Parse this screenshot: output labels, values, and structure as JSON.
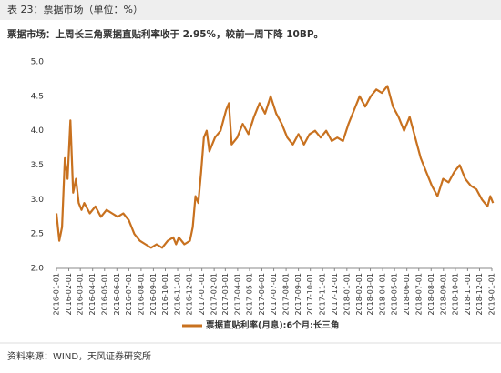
{
  "header": {
    "title": "表 23：票据市场（单位：%）"
  },
  "chart_data": {
    "type": "line",
    "subtitle": "票据市场：上周长三角票据直贴利率收于 2.95%，较前一周下降 10BP。",
    "x": [
      "2016-01-01",
      "2016-01-08",
      "2016-01-15",
      "2016-01-22",
      "2016-01-29",
      "2016-02-05",
      "2016-02-12",
      "2016-02-19",
      "2016-02-26",
      "2016-03-04",
      "2016-03-11",
      "2016-03-25",
      "2016-04-08",
      "2016-04-22",
      "2016-05-06",
      "2016-05-20",
      "2016-06-03",
      "2016-06-17",
      "2016-07-01",
      "2016-07-15",
      "2016-07-29",
      "2016-08-12",
      "2016-08-26",
      "2016-09-09",
      "2016-09-23",
      "2016-10-07",
      "2016-10-21",
      "2016-10-28",
      "2016-11-04",
      "2016-11-18",
      "2016-12-02",
      "2016-12-09",
      "2016-12-16",
      "2016-12-23",
      "2016-12-30",
      "2017-01-06",
      "2017-01-13",
      "2017-01-20",
      "2017-02-03",
      "2017-02-17",
      "2017-03-03",
      "2017-03-10",
      "2017-03-17",
      "2017-03-31",
      "2017-04-14",
      "2017-04-28",
      "2017-05-12",
      "2017-05-26",
      "2017-06-09",
      "2017-06-23",
      "2017-07-07",
      "2017-07-21",
      "2017-08-04",
      "2017-08-18",
      "2017-09-01",
      "2017-09-15",
      "2017-09-29",
      "2017-10-13",
      "2017-10-27",
      "2017-11-10",
      "2017-11-24",
      "2017-12-08",
      "2017-12-22",
      "2018-01-05",
      "2018-01-19",
      "2018-02-02",
      "2018-02-16",
      "2018-03-02",
      "2018-03-16",
      "2018-03-30",
      "2018-04-13",
      "2018-04-27",
      "2018-05-11",
      "2018-05-25",
      "2018-06-08",
      "2018-06-22",
      "2018-07-06",
      "2018-07-20",
      "2018-08-03",
      "2018-08-17",
      "2018-08-31",
      "2018-09-14",
      "2018-09-28",
      "2018-10-12",
      "2018-10-26",
      "2018-11-09",
      "2018-11-23",
      "2018-12-07",
      "2018-12-21",
      "2018-12-28",
      "2019-01-04"
    ],
    "series": [
      {
        "name": "票据直贴利率(月息):6个月:长三角",
        "color": "#c8711f",
        "values": [
          2.8,
          2.4,
          2.6,
          3.6,
          3.3,
          4.15,
          3.1,
          3.3,
          2.95,
          2.85,
          2.95,
          2.8,
          2.9,
          2.75,
          2.85,
          2.8,
          2.75,
          2.8,
          2.7,
          2.5,
          2.4,
          2.35,
          2.3,
          2.35,
          2.3,
          2.4,
          2.45,
          2.35,
          2.45,
          2.35,
          2.4,
          2.6,
          3.05,
          2.95,
          3.4,
          3.9,
          4.0,
          3.7,
          3.9,
          4.0,
          4.3,
          4.4,
          3.8,
          3.9,
          4.1,
          3.95,
          4.2,
          4.4,
          4.25,
          4.5,
          4.25,
          4.1,
          3.9,
          3.8,
          3.95,
          3.8,
          3.95,
          4.0,
          3.9,
          4.0,
          3.85,
          3.9,
          3.85,
          4.1,
          4.3,
          4.5,
          4.35,
          4.5,
          4.6,
          4.55,
          4.65,
          4.35,
          4.2,
          4.0,
          4.2,
          3.9,
          3.6,
          3.4,
          3.2,
          3.05,
          3.3,
          3.25,
          3.4,
          3.5,
          3.3,
          3.2,
          3.15,
          3.0,
          2.9,
          3.05,
          2.95
        ]
      }
    ],
    "xlim": [
      "2016-01-01",
      "2019-01-01"
    ],
    "xticks": [
      "2016-01-01",
      "2016-02-01",
      "2016-03-01",
      "2016-04-01",
      "2016-05-01",
      "2016-06-01",
      "2016-07-01",
      "2016-08-01",
      "2016-09-01",
      "2016-10-01",
      "2016-11-01",
      "2016-12-01",
      "2017-01-01",
      "2017-02-01",
      "2017-03-01",
      "2017-04-01",
      "2017-05-01",
      "2017-06-01",
      "2017-07-01",
      "2017-08-01",
      "2017-09-01",
      "2017-10-01",
      "2017-11-01",
      "2017-12-01",
      "2018-01-01",
      "2018-02-01",
      "2018-03-01",
      "2018-04-01",
      "2018-05-01",
      "2018-06-01",
      "2018-07-01",
      "2018-08-01",
      "2018-09-01",
      "2018-10-01",
      "2018-11-01",
      "2018-12-01",
      "2019-01-01"
    ],
    "ylim": [
      2,
      5
    ],
    "yticks": [
      {
        "value": 2,
        "label": "2.0"
      },
      {
        "value": 2.5,
        "label": "2.5"
      },
      {
        "value": 3,
        "label": "3.0"
      },
      {
        "value": 3.5,
        "label": "3.5"
      },
      {
        "value": 4,
        "label": "4.0"
      },
      {
        "value": 4.5,
        "label": "4.5"
      },
      {
        "value": 5,
        "label": "5.0"
      }
    ]
  },
  "footer": {
    "source": "资料来源：WIND，天风证券研究所"
  }
}
